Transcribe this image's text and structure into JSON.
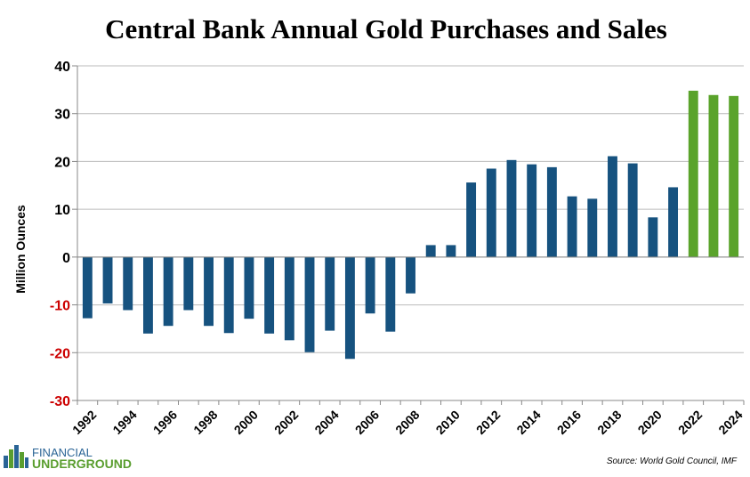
{
  "chart_data": {
    "type": "bar",
    "title": "Central Bank Annual Gold Purchases and Sales",
    "ylabel": "Million Ounces",
    "xlabel": "",
    "ylim": [
      -30,
      40
    ],
    "yticks": [
      "40",
      "30",
      "20",
      "10",
      "0",
      "-10",
      "-20",
      "-30"
    ],
    "x_tick_labels": [
      "1992",
      "1994",
      "1996",
      "1998",
      "2000",
      "2002",
      "2004",
      "2006",
      "2008",
      "2010",
      "2012",
      "2014",
      "2016",
      "2018",
      "2020",
      "2022",
      "2024"
    ],
    "categories": [
      1992,
      1993,
      1994,
      1995,
      1996,
      1997,
      1998,
      1999,
      2000,
      2001,
      2002,
      2003,
      2004,
      2005,
      2006,
      2007,
      2008,
      2009,
      2010,
      2011,
      2012,
      2013,
      2014,
      2015,
      2016,
      2017,
      2018,
      2019,
      2020,
      2021,
      2022,
      2023,
      2024
    ],
    "values": [
      -12.8,
      -9.7,
      -11.1,
      -16.0,
      -14.4,
      -11.1,
      -14.4,
      -15.9,
      -12.9,
      -16.0,
      -17.4,
      -19.9,
      -15.4,
      -21.3,
      -11.8,
      -15.6,
      -7.6,
      2.5,
      2.5,
      15.6,
      18.5,
      20.3,
      19.4,
      18.8,
      12.7,
      12.2,
      21.1,
      19.6,
      8.3,
      14.6,
      34.8,
      33.9,
      33.7
    ],
    "colors": {
      "default_bar": "#16527f",
      "highlight_bar": "#5aa32b",
      "negative_tick": "#cc0000",
      "positive_tick": "#000000",
      "grid": "#bbbbbb"
    },
    "highlight_from": 2022,
    "grid": true
  },
  "source": "Source: World Gold Council, IMF",
  "logo": {
    "line1": "FINANCIAL",
    "line2": "UNDERGROUND",
    "icon": "city-skyline-icon"
  }
}
